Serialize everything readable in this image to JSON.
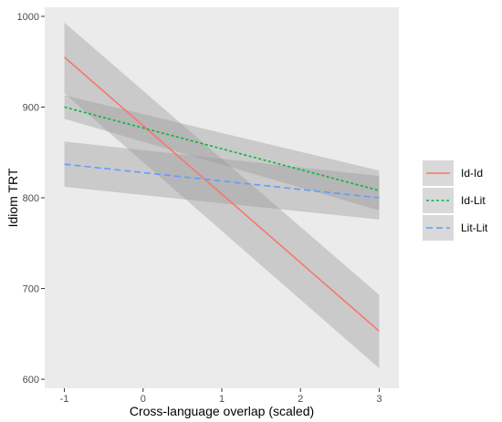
{
  "chart_data": {
    "type": "line",
    "title": "",
    "xlabel": "Cross-language overlap (scaled)",
    "ylabel": "Idiom TRT",
    "xlim": [
      -1.25,
      3.25
    ],
    "ylim": [
      590,
      1010
    ],
    "x_ticks": [
      -1,
      0,
      1,
      2,
      3
    ],
    "x_tick_labels": [
      "-1",
      "0",
      "1",
      "2",
      "3"
    ],
    "y_ticks": [
      600,
      700,
      800,
      900,
      1000
    ],
    "y_tick_labels": [
      "600",
      "700",
      "800",
      "900",
      "1000"
    ],
    "grid": false,
    "legend_position": "right",
    "background": "#ebebeb",
    "ribbon_color": "#bdbdbd",
    "series": [
      {
        "name": "Id-Id",
        "color": "#f8766d",
        "dash": "solid",
        "x": [
          -1,
          3
        ],
        "y": [
          955,
          653
        ],
        "ci_upper": [
          993,
          693
        ],
        "ci_lower": [
          915,
          612
        ]
      },
      {
        "name": "Id-Lit",
        "color": "#00ba38",
        "dash": "dotted",
        "x": [
          -1,
          3
        ],
        "y": [
          900,
          808
        ],
        "ci_upper": [
          913,
          830
        ],
        "ci_lower": [
          887,
          786
        ]
      },
      {
        "name": "Lit-Lit",
        "color": "#619cff",
        "dash": "dashed",
        "x": [
          -1,
          3
        ],
        "y": [
          837,
          800
        ],
        "ci_upper": [
          862,
          824
        ],
        "ci_lower": [
          812,
          776
        ]
      }
    ]
  }
}
